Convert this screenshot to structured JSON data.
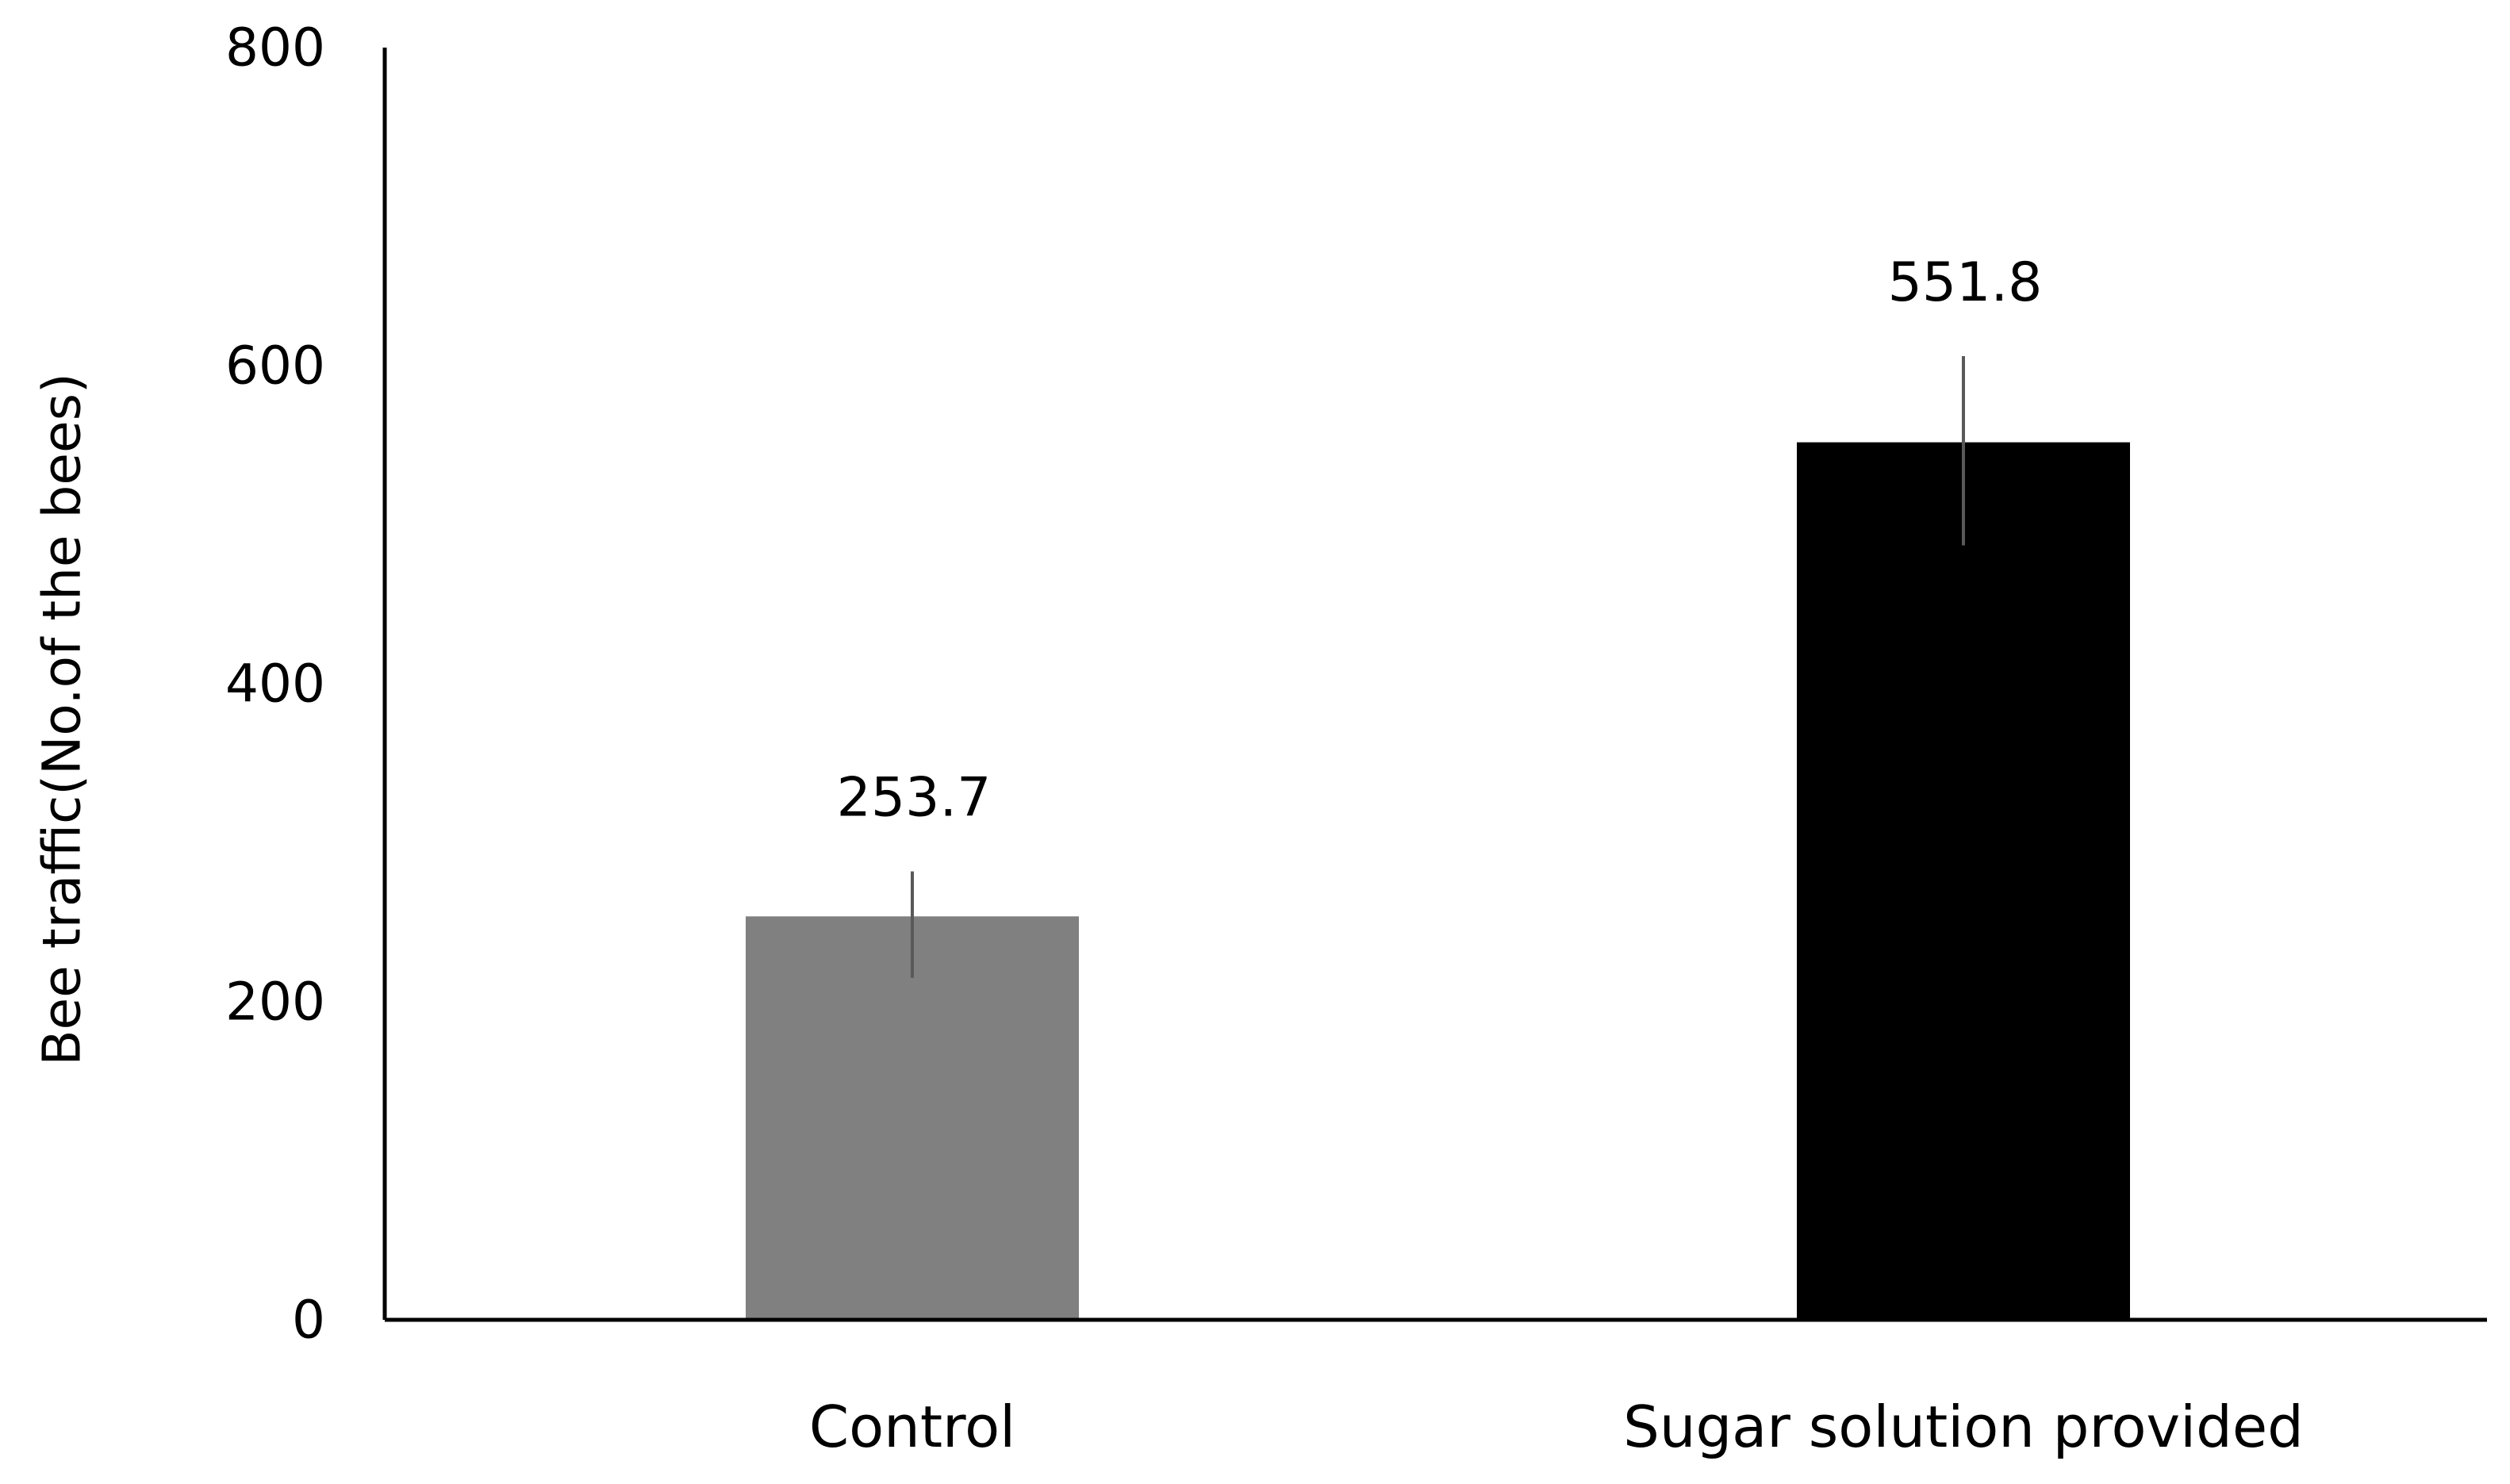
{
  "chart_data": {
    "type": "bar",
    "title": "",
    "xlabel": "",
    "ylabel": "Bee traffic(No.of the bees)",
    "ylim": [
      0,
      800
    ],
    "yticks": [
      0,
      200,
      400,
      600,
      800
    ],
    "grid": false,
    "categories": [
      "Control",
      "Sugar solution provided"
    ],
    "values": [
      253.7,
      551.8
    ],
    "data_labels": [
      "253.7",
      "551.8"
    ],
    "error_bars": [
      {
        "low": 215,
        "high": 282
      },
      {
        "low": 487,
        "high": 606
      }
    ],
    "colors": [
      "#808080",
      "#000000"
    ]
  }
}
